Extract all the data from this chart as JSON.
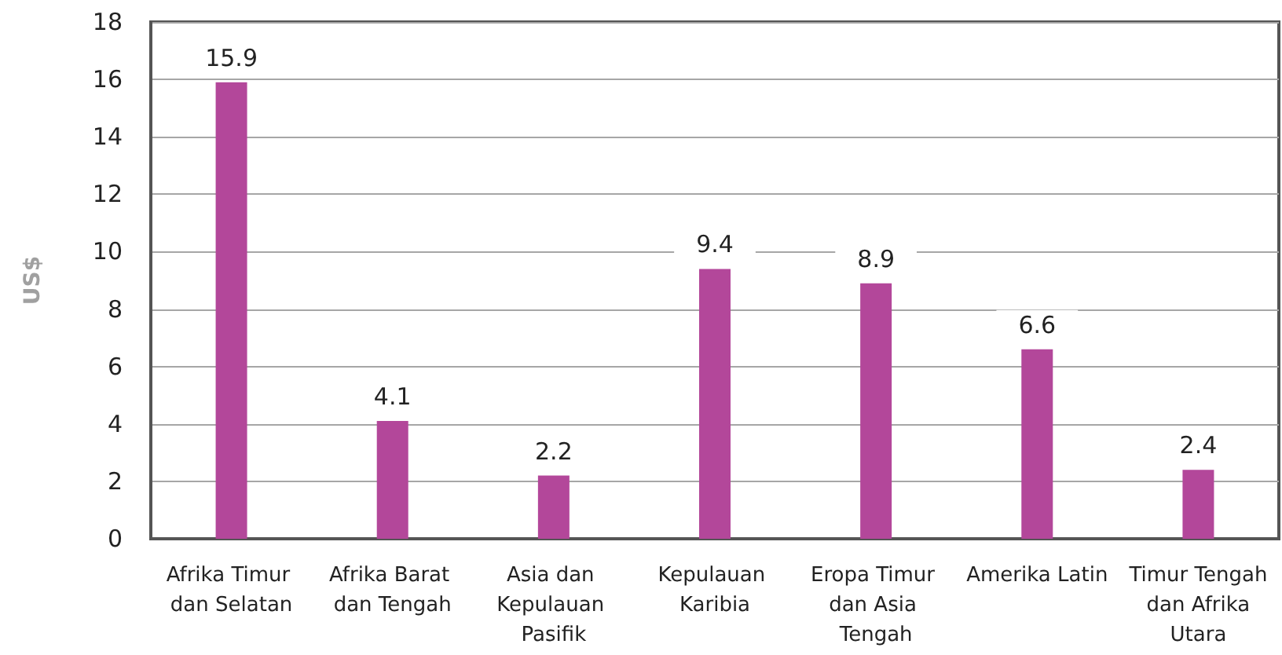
{
  "chart_data": {
    "type": "bar",
    "categories": [
      "Afrika Timur dan Selatan",
      "Afrika Barat dan Tengah",
      "Asia dan Kepulauan Pasifik",
      "Kepulauan Karibia",
      "Eropa Timur dan Asia Tengah",
      "Amerika Latin",
      "Timur Tengah dan Afrika Utara"
    ],
    "values": [
      15.9,
      4.1,
      2.2,
      9.4,
      8.9,
      6.6,
      2.4
    ],
    "color": "#b3479a",
    "ylabel": "US$",
    "ylim": [
      0,
      18
    ],
    "yticks": [
      0,
      2,
      4,
      6,
      8,
      10,
      12,
      14,
      16,
      18
    ],
    "grid": "y",
    "data_labels": true
  }
}
